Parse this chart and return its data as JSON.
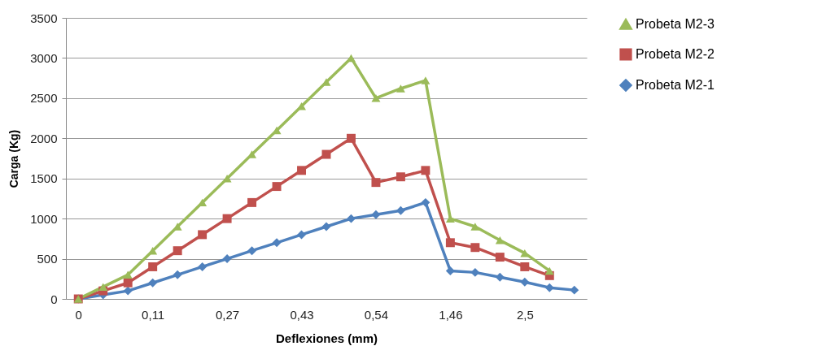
{
  "chart_data": {
    "type": "line",
    "xlabel": "Deflexiones (mm)",
    "ylabel": "Carga (Kg)",
    "categories": [
      "0",
      null,
      null,
      "0,11",
      null,
      null,
      "0,27",
      null,
      null,
      "0,43",
      null,
      null,
      "0,54",
      null,
      null,
      "1,46",
      null,
      null,
      "2,5",
      null,
      null
    ],
    "series": [
      {
        "name": "Probeta M2-3",
        "color": "#9bbb59",
        "marker": "triangle",
        "values": [
          0,
          150,
          300,
          600,
          900,
          1200,
          1500,
          1800,
          2100,
          2400,
          2700,
          3000,
          2500,
          2620,
          2720,
          1000,
          900,
          730,
          570,
          350,
          null
        ]
      },
      {
        "name": "Probeta M2-2",
        "color": "#c0504d",
        "marker": "square",
        "values": [
          0,
          100,
          200,
          400,
          600,
          800,
          1000,
          1200,
          1400,
          1600,
          1800,
          2000,
          1450,
          1520,
          1600,
          700,
          640,
          520,
          400,
          290,
          null
        ]
      },
      {
        "name": "Probeta M2-1",
        "color": "#4f81bd",
        "marker": "diamond",
        "values": [
          0,
          50,
          100,
          200,
          300,
          400,
          500,
          600,
          700,
          800,
          900,
          1000,
          1050,
          1100,
          1200,
          350,
          330,
          270,
          210,
          140,
          110
        ]
      }
    ],
    "ylim": [
      0,
      3500
    ],
    "yticks": [
      0,
      500,
      1000,
      1500,
      2000,
      2500,
      3000,
      3500
    ],
    "grid": "y",
    "legend": "right"
  }
}
